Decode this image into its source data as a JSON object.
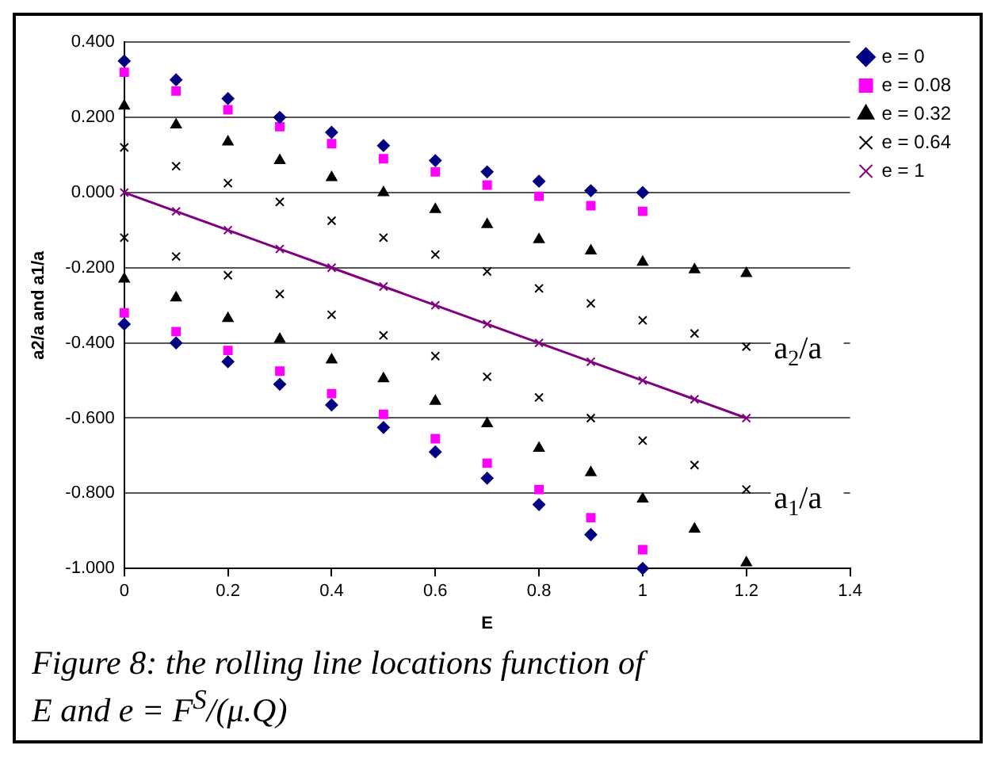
{
  "chart_data": {
    "type": "scatter",
    "xlabel": "E",
    "ylabel": "a2/a and a1/a",
    "xlim": [
      0,
      1.4
    ],
    "xticks": [
      0,
      0.2,
      0.4,
      0.6,
      0.8,
      1,
      1.2,
      1.4
    ],
    "ylim": [
      -1,
      0.4
    ],
    "yticks": [
      {
        "value": -1,
        "label": "-1.000"
      },
      {
        "value": -0.8,
        "label": "-0.800"
      },
      {
        "value": -0.6,
        "label": "-0.600"
      },
      {
        "value": -0.4,
        "label": "-0.400"
      },
      {
        "value": -0.2,
        "label": "-0.200"
      },
      {
        "value": 0,
        "label": "0.000"
      },
      {
        "value": 0.2,
        "label": "0.200"
      },
      {
        "value": 0.4,
        "label": "0.400"
      }
    ],
    "grid": "y",
    "legend": "top right",
    "series": [
      {
        "name": "e = 0",
        "color": "#000080",
        "marker": "diamond",
        "x": [
          0,
          0.1,
          0.2,
          0.3,
          0.4,
          0.5,
          0.6,
          0.7,
          0.8,
          0.9,
          1,
          0,
          0.1,
          0.2,
          0.3,
          0.4,
          0.5,
          0.6,
          0.7,
          0.8,
          0.9,
          1
        ],
        "values": [
          0.35,
          0.3,
          0.25,
          0.2,
          0.16,
          0.125,
          0.085,
          0.055,
          0.03,
          0.005,
          0,
          -0.35,
          -0.4,
          -0.45,
          -0.51,
          -0.565,
          -0.625,
          -0.69,
          -0.76,
          -0.83,
          -0.91,
          -1
        ]
      },
      {
        "name": "e = 0.08",
        "color": "#ff00ff",
        "marker": "square",
        "x": [
          0,
          0.1,
          0.2,
          0.3,
          0.4,
          0.5,
          0.6,
          0.7,
          0.8,
          0.9,
          1,
          0,
          0.1,
          0.2,
          0.3,
          0.4,
          0.5,
          0.6,
          0.7,
          0.8,
          0.9,
          1
        ],
        "values": [
          0.32,
          0.27,
          0.22,
          0.175,
          0.13,
          0.09,
          0.055,
          0.02,
          -0.01,
          -0.035,
          -0.05,
          -0.32,
          -0.37,
          -0.42,
          -0.475,
          -0.535,
          -0.59,
          -0.655,
          -0.72,
          -0.79,
          -0.865,
          -0.95
        ]
      },
      {
        "name": "e = 0.32",
        "color": "#000000",
        "marker": "triangle",
        "x": [
          0,
          0.1,
          0.2,
          0.3,
          0.4,
          0.5,
          0.6,
          0.7,
          0.8,
          0.9,
          1,
          1.1,
          1.2,
          0,
          0.1,
          0.2,
          0.3,
          0.4,
          0.5,
          0.6,
          0.7,
          0.8,
          0.9,
          1,
          1.1,
          1.2
        ],
        "values": [
          0.23,
          0.18,
          0.135,
          0.085,
          0.04,
          0,
          -0.045,
          -0.085,
          -0.125,
          -0.155,
          -0.185,
          -0.205,
          -0.215,
          -0.23,
          -0.28,
          -0.335,
          -0.39,
          -0.445,
          -0.495,
          -0.555,
          -0.615,
          -0.68,
          -0.745,
          -0.815,
          -0.895,
          -0.985
        ]
      },
      {
        "name": "e = 0.64",
        "color": "#000000",
        "marker": "cross",
        "x": [
          0,
          0.1,
          0.2,
          0.3,
          0.4,
          0.5,
          0.6,
          0.7,
          0.8,
          0.9,
          1,
          1.1,
          1.2,
          0,
          0.1,
          0.2,
          0.3,
          0.4,
          0.5,
          0.6,
          0.7,
          0.8,
          0.9,
          1,
          1.1,
          1.2
        ],
        "values": [
          0.12,
          0.07,
          0.025,
          -0.025,
          -0.075,
          -0.12,
          -0.165,
          -0.21,
          -0.255,
          -0.295,
          -0.34,
          -0.375,
          -0.41,
          -0.12,
          -0.17,
          -0.22,
          -0.27,
          -0.325,
          -0.38,
          -0.435,
          -0.49,
          -0.545,
          -0.6,
          -0.66,
          -0.725,
          -0.79
        ]
      },
      {
        "name": "e = 1",
        "type": "line",
        "color": "#800080",
        "marker": "cross",
        "line_style": "solid",
        "x": [
          0,
          0.1,
          0.2,
          0.3,
          0.4,
          0.5,
          0.6,
          0.7,
          0.8,
          0.9,
          1,
          1.1,
          1.2
        ],
        "values": [
          0,
          -0.05,
          -0.1,
          -0.15,
          -0.2,
          -0.25,
          -0.3,
          -0.35,
          -0.4,
          -0.45,
          -0.5,
          -0.55,
          -0.6
        ]
      }
    ],
    "annotations": [
      "a$_{2}$/a",
      "a$_{1}$/a",
      "Figure 8: the rolling line locations function of  E and e = F$^{S}$/(μ.Q)"
    ]
  }
}
